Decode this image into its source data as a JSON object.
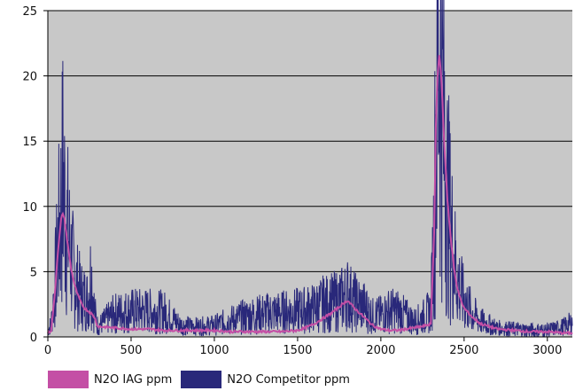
{
  "chart_data": {
    "type": "line",
    "title": "",
    "xlabel": "",
    "ylabel": "",
    "xlim": [
      0,
      3150
    ],
    "ylim": [
      0,
      25
    ],
    "x_ticks": [
      0,
      500,
      1000,
      1500,
      2000,
      2500,
      3000
    ],
    "y_ticks": [
      0,
      5,
      10,
      15,
      20,
      25
    ],
    "grid": "horizontal",
    "plot_background": "#c8c8c8",
    "legend_position": "bottom-left",
    "series": [
      {
        "name": "N2O IAG ppm",
        "color": "#c44fa5",
        "x": [
          0,
          20,
          40,
          60,
          80,
          90,
          100,
          120,
          140,
          160,
          180,
          200,
          220,
          240,
          260,
          280,
          300,
          400,
          500,
          600,
          700,
          800,
          900,
          1000,
          1100,
          1200,
          1300,
          1400,
          1500,
          1550,
          1600,
          1650,
          1700,
          1750,
          1780,
          1800,
          1820,
          1850,
          1900,
          1950,
          2000,
          2050,
          2100,
          2150,
          2200,
          2250,
          2300,
          2320,
          2330,
          2340,
          2350,
          2360,
          2370,
          2380,
          2400,
          2420,
          2440,
          2460,
          2480,
          2500,
          2550,
          2600,
          2700,
          2800,
          2900,
          3000,
          3100,
          3150
        ],
        "values": [
          0.3,
          0.5,
          3,
          6.5,
          9,
          9.5,
          9,
          7,
          5.2,
          4,
          3.2,
          2.6,
          2.2,
          2,
          1.8,
          1.5,
          0.8,
          0.7,
          0.6,
          0.6,
          0.5,
          0.5,
          0.5,
          0.5,
          0.4,
          0.4,
          0.4,
          0.4,
          0.5,
          0.7,
          1,
          1.4,
          1.8,
          2.3,
          2.6,
          2.8,
          2.5,
          2.1,
          1.5,
          0.9,
          0.6,
          0.5,
          0.5,
          0.6,
          0.7,
          0.8,
          1,
          8,
          16,
          20,
          21.5,
          20.5,
          18,
          15,
          10.5,
          7.5,
          5.2,
          3.7,
          2.8,
          2.2,
          1.5,
          1,
          0.6,
          0.5,
          0.4,
          0.4,
          0.3,
          0.3
        ]
      },
      {
        "name": "N2O Competitor ppm",
        "color": "#29287a",
        "x": [
          0,
          20,
          40,
          60,
          80,
          90,
          100,
          120,
          140,
          160,
          180,
          200,
          220,
          240,
          260,
          280,
          300,
          400,
          500,
          600,
          700,
          800,
          900,
          1000,
          1100,
          1200,
          1300,
          1400,
          1500,
          1550,
          1600,
          1650,
          1700,
          1750,
          1780,
          1800,
          1820,
          1850,
          1900,
          1950,
          2000,
          2050,
          2100,
          2150,
          2200,
          2250,
          2300,
          2320,
          2330,
          2340,
          2350,
          2360,
          2370,
          2380,
          2400,
          2420,
          2440,
          2460,
          2480,
          2500,
          2550,
          2600,
          2700,
          2800,
          2900,
          3000,
          3100,
          3150
        ],
        "values": [
          0.5,
          1,
          3.5,
          7,
          10,
          12.5,
          10.5,
          8,
          6,
          4.5,
          3.8,
          3.2,
          3,
          2.8,
          5,
          2,
          0.8,
          1.8,
          2,
          2,
          1.9,
          0.9,
          0.8,
          0.9,
          1.3,
          1.6,
          1.8,
          1.9,
          2,
          2.1,
          2.2,
          2.5,
          2.6,
          2.8,
          3,
          3.3,
          3,
          2.6,
          2.3,
          1.6,
          1.7,
          2,
          2,
          1.6,
          1.2,
          1.5,
          2,
          8.5,
          16.5,
          20.5,
          22,
          21,
          18.5,
          15.5,
          11,
          8.2,
          6,
          4.5,
          3.5,
          2.8,
          1.8,
          1.2,
          0.7,
          0.6,
          0.5,
          0.5,
          0.8,
          1.1
        ]
      }
    ]
  }
}
